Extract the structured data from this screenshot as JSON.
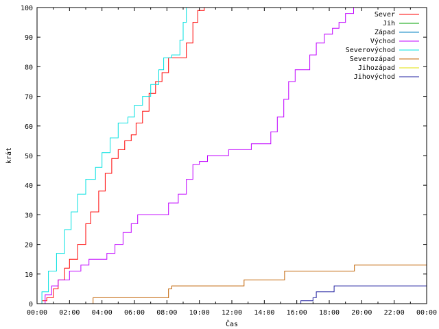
{
  "chart_data": {
    "type": "line",
    "title": "",
    "xlabel": "Čas",
    "ylabel": "krát",
    "xlim": [
      0,
      24
    ],
    "ylim": [
      0,
      100
    ],
    "x_ticks": [
      "00:00",
      "02:00",
      "04:00",
      "06:00",
      "08:00",
      "10:00",
      "12:00",
      "14:00",
      "16:00",
      "18:00",
      "20:00",
      "22:00",
      "00:00"
    ],
    "y_ticks": [
      "0",
      "10",
      "20",
      "30",
      "40",
      "50",
      "60",
      "70",
      "80",
      "90",
      "100"
    ],
    "grid": false,
    "legend_position": "top-right",
    "series": [
      {
        "name": "Sever",
        "color": "#ff0000",
        "points": [
          [
            0,
            0
          ],
          [
            0.3,
            1
          ],
          [
            0.6,
            2
          ],
          [
            1,
            5
          ],
          [
            1.3,
            8
          ],
          [
            1.7,
            12
          ],
          [
            2,
            15
          ],
          [
            2.5,
            20
          ],
          [
            3,
            27
          ],
          [
            3.3,
            31
          ],
          [
            3.8,
            38
          ],
          [
            4.2,
            44
          ],
          [
            4.6,
            49
          ],
          [
            5,
            52
          ],
          [
            5.4,
            55
          ],
          [
            5.8,
            57
          ],
          [
            6.1,
            61
          ],
          [
            6.5,
            65
          ],
          [
            6.9,
            71
          ],
          [
            7.3,
            75
          ],
          [
            7.7,
            78
          ],
          [
            8.1,
            83
          ],
          [
            8.9,
            83
          ],
          [
            9.2,
            88
          ],
          [
            9.6,
            95
          ],
          [
            9.9,
            99
          ],
          [
            10.3,
            100
          ]
        ]
      },
      {
        "name": "Jih",
        "color": "#00a000",
        "points": []
      },
      {
        "name": "Západ",
        "color": "#0080c0",
        "points": []
      },
      {
        "name": "Východ",
        "color": "#c000ff",
        "points": [
          [
            0,
            0
          ],
          [
            0.5,
            3
          ],
          [
            0.9,
            6
          ],
          [
            1.3,
            8
          ],
          [
            2,
            11
          ],
          [
            2.7,
            13
          ],
          [
            3.2,
            15
          ],
          [
            4.3,
            17
          ],
          [
            4.8,
            20
          ],
          [
            5.3,
            24
          ],
          [
            5.8,
            27
          ],
          [
            6.2,
            30
          ],
          [
            7.6,
            30
          ],
          [
            8.1,
            34
          ],
          [
            8.7,
            37
          ],
          [
            9.2,
            42
          ],
          [
            9.6,
            47
          ],
          [
            10,
            48
          ],
          [
            10.5,
            50
          ],
          [
            11.5,
            50
          ],
          [
            11.8,
            52
          ],
          [
            12.8,
            52
          ],
          [
            13.2,
            54
          ],
          [
            14,
            54
          ],
          [
            14.4,
            58
          ],
          [
            14.8,
            63
          ],
          [
            15.2,
            69
          ],
          [
            15.5,
            75
          ],
          [
            15.9,
            79
          ],
          [
            16.4,
            79
          ],
          [
            16.8,
            84
          ],
          [
            17.2,
            88
          ],
          [
            17.7,
            91
          ],
          [
            18.2,
            93
          ],
          [
            18.6,
            95
          ],
          [
            19,
            98
          ],
          [
            19.3,
            98
          ],
          [
            19.5,
            100
          ]
        ]
      },
      {
        "name": "Severovýchod",
        "color": "#00e0e0",
        "points": [
          [
            0,
            0
          ],
          [
            0.3,
            4
          ],
          [
            0.7,
            11
          ],
          [
            1.2,
            17
          ],
          [
            1.7,
            25
          ],
          [
            2.1,
            31
          ],
          [
            2.5,
            37
          ],
          [
            3,
            42
          ],
          [
            3.4,
            42
          ],
          [
            3.6,
            46
          ],
          [
            4,
            51
          ],
          [
            4.5,
            56
          ],
          [
            5,
            61
          ],
          [
            5.6,
            63
          ],
          [
            6,
            67
          ],
          [
            6.5,
            70
          ],
          [
            7,
            74
          ],
          [
            7.5,
            79
          ],
          [
            7.8,
            83
          ],
          [
            8.3,
            84
          ],
          [
            8.8,
            89
          ],
          [
            9,
            95
          ],
          [
            9.2,
            100
          ]
        ]
      },
      {
        "name": "Severozápad",
        "color": "#c06000",
        "points": [
          [
            0,
            0
          ],
          [
            3.4,
            0
          ],
          [
            3.45,
            2
          ],
          [
            7.9,
            2
          ],
          [
            8.1,
            5
          ],
          [
            8.3,
            6
          ],
          [
            12.7,
            6
          ],
          [
            12.75,
            8
          ],
          [
            15.2,
            8
          ],
          [
            15.25,
            11
          ],
          [
            19.5,
            11
          ],
          [
            19.55,
            13
          ],
          [
            24,
            13
          ]
        ]
      },
      {
        "name": "Jihozápad",
        "color": "#e0e000",
        "points": []
      },
      {
        "name": "Jihovýchod",
        "color": "#2020a0",
        "points": [
          [
            0,
            0
          ],
          [
            16.2,
            0
          ],
          [
            16.25,
            1
          ],
          [
            17,
            2
          ],
          [
            17.2,
            4
          ],
          [
            18.2,
            4
          ],
          [
            18.3,
            6
          ],
          [
            24,
            6
          ]
        ]
      }
    ]
  }
}
